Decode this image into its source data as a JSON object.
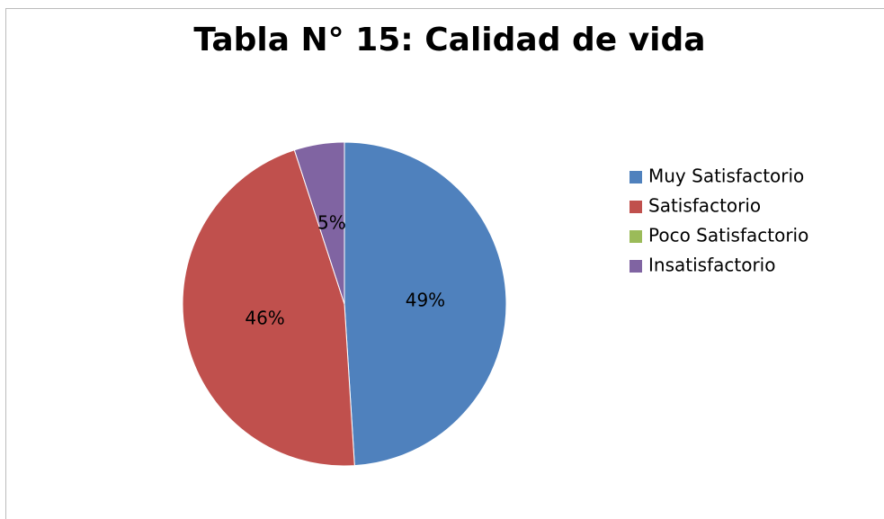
{
  "chart_data": {
    "type": "pie",
    "title": "Tabla N° 15: Calidad de vida",
    "categories": [
      "Muy Satisfactorio",
      "Satisfactorio",
      "Poco Satisfactorio",
      "Insatisfactorio"
    ],
    "values": [
      49,
      46,
      0,
      5
    ],
    "value_labels": [
      "49%",
      "46%",
      null,
      "5%"
    ],
    "colors": [
      "#4f81bd",
      "#c0504d",
      "#9bbb59",
      "#8064a2"
    ],
    "legend": "right"
  }
}
